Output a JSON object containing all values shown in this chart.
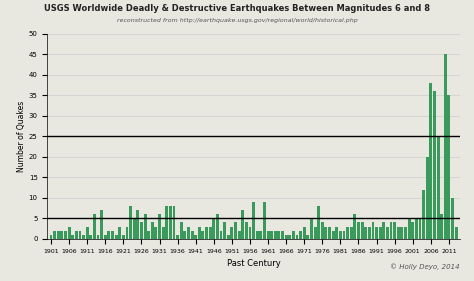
{
  "title": "USGS Worldwide Deadly & Destructive Earthquakes Between Magnitudes 6 and 8",
  "subtitle": "reconstructed from http://earthquake.usgs.gov/regional/world/historical.php",
  "xlabel": "Past Century",
  "ylabel": "Number of Quakes",
  "credit": "© Holly Deyo, 2014",
  "bar_color": "#3a9a5c",
  "bg_color": "#e8e8e0",
  "grid_color": "#cccccc",
  "bold_line_color": "#000000",
  "ylim": [
    0,
    50
  ],
  "yticks": [
    0,
    5,
    10,
    15,
    20,
    25,
    30,
    35,
    40,
    45,
    50
  ],
  "bold_hlines": [
    5,
    25
  ],
  "years": [
    1901,
    1902,
    1903,
    1904,
    1905,
    1906,
    1907,
    1908,
    1909,
    1910,
    1911,
    1912,
    1913,
    1914,
    1915,
    1916,
    1917,
    1918,
    1919,
    1920,
    1921,
    1922,
    1923,
    1924,
    1925,
    1926,
    1927,
    1928,
    1929,
    1930,
    1931,
    1932,
    1933,
    1934,
    1935,
    1936,
    1937,
    1938,
    1939,
    1940,
    1941,
    1942,
    1943,
    1944,
    1945,
    1946,
    1947,
    1948,
    1949,
    1950,
    1951,
    1952,
    1953,
    1954,
    1955,
    1956,
    1957,
    1958,
    1959,
    1960,
    1961,
    1962,
    1963,
    1964,
    1965,
    1966,
    1967,
    1968,
    1969,
    1970,
    1971,
    1972,
    1973,
    1974,
    1975,
    1976,
    1977,
    1978,
    1979,
    1980,
    1981,
    1982,
    1983,
    1984,
    1985,
    1986,
    1987,
    1988,
    1989,
    1990,
    1991,
    1992,
    1993,
    1994,
    1995,
    1996,
    1997,
    1998,
    1999,
    2000,
    2001,
    2002,
    2003,
    2004,
    2005,
    2006,
    2007,
    2008,
    2009,
    2010,
    2011,
    2012,
    2013
  ],
  "values": [
    1,
    2,
    2,
    2,
    2,
    3,
    1,
    2,
    2,
    1,
    3,
    1,
    6,
    1,
    7,
    1,
    2,
    2,
    1,
    3,
    1,
    3,
    8,
    5,
    7,
    4,
    6,
    2,
    4,
    3,
    6,
    3,
    8,
    8,
    8,
    1,
    4,
    2,
    3,
    2,
    1,
    3,
    2,
    3,
    3,
    5,
    6,
    2,
    4,
    1,
    3,
    4,
    2,
    7,
    4,
    3,
    9,
    2,
    2,
    9,
    2,
    2,
    2,
    2,
    2,
    1,
    1,
    2,
    1,
    2,
    3,
    1,
    5,
    3,
    8,
    4,
    3,
    3,
    2,
    3,
    2,
    2,
    3,
    3,
    6,
    4,
    4,
    3,
    3,
    4,
    3,
    3,
    4,
    3,
    4,
    4,
    3,
    3,
    3,
    5,
    4,
    5,
    5,
    12,
    20,
    38,
    36,
    25,
    6,
    45,
    35,
    10,
    3
  ]
}
